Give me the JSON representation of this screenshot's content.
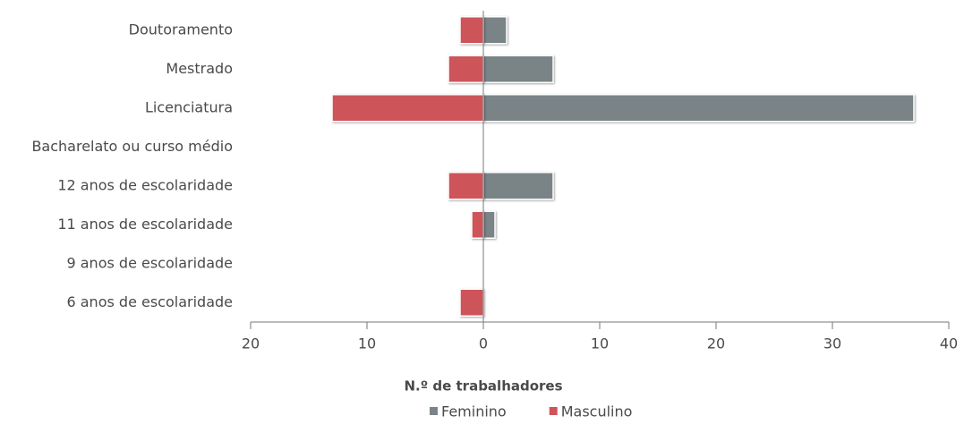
{
  "chart_data": {
    "type": "bar",
    "orientation": "horizontal",
    "categories": [
      "Doutoramento",
      "Mestrado",
      "Licenciatura",
      "Bacharelato ou curso médio",
      "12 anos de escolaridade",
      "11 anos de escolaridade",
      "9 anos de escolaridade",
      "6 anos de escolaridade"
    ],
    "series": [
      {
        "name": "Feminino",
        "color": "#7a8487",
        "values": [
          2,
          6,
          37,
          0,
          6,
          1,
          0,
          0
        ]
      },
      {
        "name": "Masculino",
        "color": "#cd5459",
        "values": [
          -2,
          -3,
          -13,
          0,
          -3,
          -1,
          0,
          -2
        ]
      }
    ],
    "xlabel": "N.º de trabalhadores",
    "xlim": [
      -20,
      40
    ],
    "xticks": [
      {
        "value": -20,
        "label": "20"
      },
      {
        "value": -10,
        "label": "10"
      },
      0,
      10,
      20,
      30,
      40
    ],
    "legend": "bottom"
  }
}
